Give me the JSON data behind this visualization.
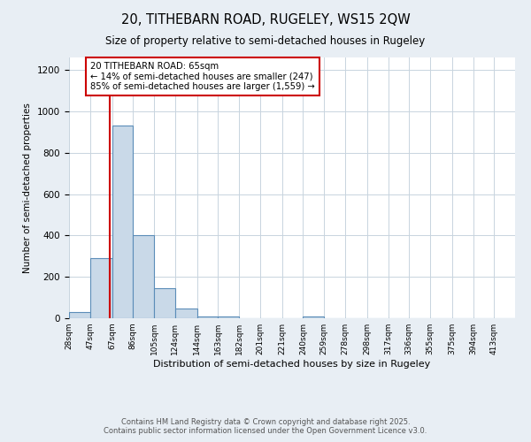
{
  "title": "20, TITHEBARN ROAD, RUGELEY, WS15 2QW",
  "subtitle": "Size of property relative to semi-detached houses in Rugeley",
  "xlabel": "Distribution of semi-detached houses by size in Rugeley",
  "ylabel": "Number of semi-detached properties",
  "bar_values": [
    30,
    290,
    930,
    400,
    145,
    45,
    10,
    10,
    0,
    0,
    0,
    10,
    0,
    0,
    0,
    0,
    0,
    0,
    0,
    0,
    0
  ],
  "bin_labels": [
    "28sqm",
    "47sqm",
    "67sqm",
    "86sqm",
    "105sqm",
    "124sqm",
    "144sqm",
    "163sqm",
    "182sqm",
    "201sqm",
    "221sqm",
    "240sqm",
    "259sqm",
    "278sqm",
    "298sqm",
    "317sqm",
    "336sqm",
    "355sqm",
    "375sqm",
    "394sqm",
    "413sqm"
  ],
  "bin_edges": [
    28,
    47,
    67,
    86,
    105,
    124,
    144,
    163,
    182,
    201,
    221,
    240,
    259,
    278,
    298,
    317,
    336,
    355,
    375,
    394,
    413
  ],
  "bar_color": "#c9d9e8",
  "bar_edge_color": "#5b8db8",
  "property_line_x": 65,
  "property_line_color": "#cc0000",
  "annotation_text": "20 TITHEBARN ROAD: 65sqm\n← 14% of semi-detached houses are smaller (247)\n85% of semi-detached houses are larger (1,559) →",
  "annotation_box_color": "#cc0000",
  "ylim": [
    0,
    1260
  ],
  "yticks": [
    0,
    200,
    400,
    600,
    800,
    1000,
    1200
  ],
  "footnote1": "Contains HM Land Registry data © Crown copyright and database right 2025.",
  "footnote2": "Contains public sector information licensed under the Open Government Licence v3.0.",
  "bg_color": "#e8eef4",
  "plot_bg_color": "#ffffff"
}
